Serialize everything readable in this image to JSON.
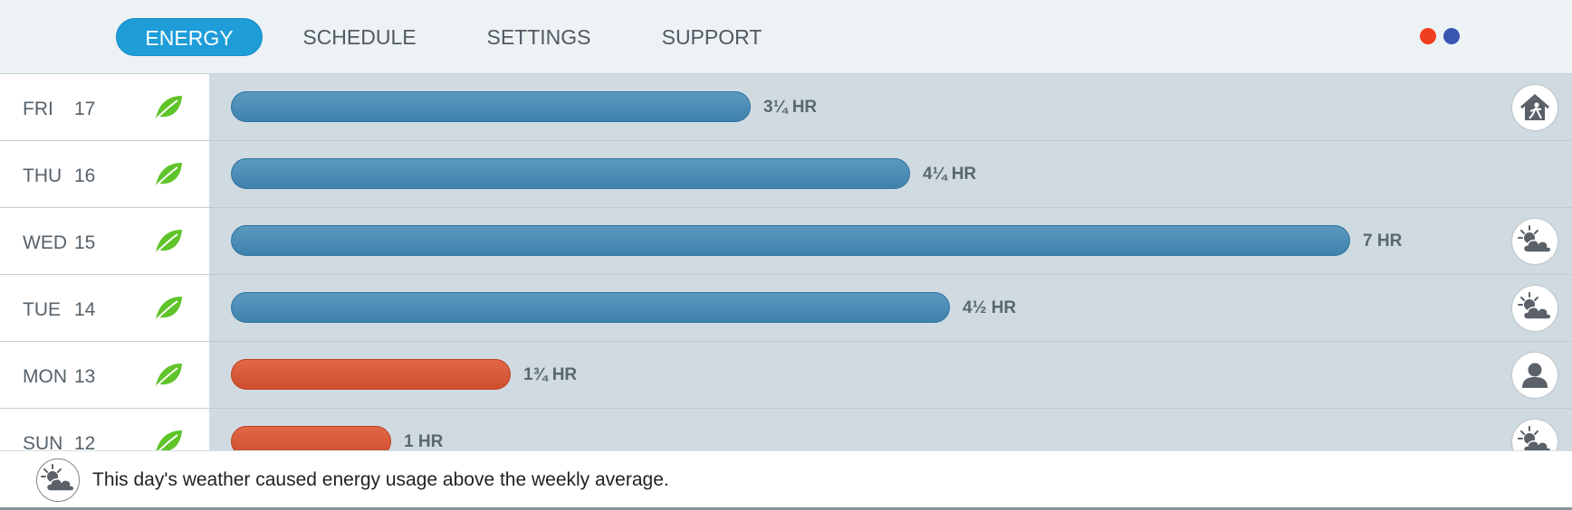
{
  "nav": {
    "tabs": [
      {
        "label": "ENERGY",
        "active": true
      },
      {
        "label": "SCHEDULE",
        "active": false
      },
      {
        "label": "SETTINGS",
        "active": false
      },
      {
        "label": "SUPPORT",
        "active": false
      }
    ],
    "indicator_colors": [
      "#ef3e1e",
      "#3a56b3"
    ]
  },
  "days": [
    {
      "day": "FRI",
      "date": "17",
      "usage_label": "3¼ HR",
      "hours": 3.25,
      "bar_color": "blue",
      "leaf_icon": "leaf-icon",
      "cause_icon": "away-home-icon"
    },
    {
      "day": "THU",
      "date": "16",
      "usage_label": "4¼ HR",
      "hours": 4.25,
      "bar_color": "blue",
      "leaf_icon": "leaf-icon",
      "cause_icon": null
    },
    {
      "day": "WED",
      "date": "15",
      "usage_label": "7 HR",
      "hours": 7,
      "bar_color": "blue",
      "leaf_icon": "leaf-icon",
      "cause_icon": "weather-icon"
    },
    {
      "day": "TUE",
      "date": "14",
      "usage_label": "4½ HR",
      "hours": 4.5,
      "bar_color": "blue",
      "leaf_icon": "leaf-icon",
      "cause_icon": "weather-icon"
    },
    {
      "day": "MON",
      "date": "13",
      "usage_label": "1¾ HR",
      "hours": 1.75,
      "bar_color": "orange",
      "leaf_icon": "leaf-icon",
      "cause_icon": "user-icon"
    },
    {
      "day": "SUN",
      "date": "12",
      "usage_label": "1 HR",
      "hours": 1,
      "bar_color": "orange",
      "leaf_icon": "leaf-icon",
      "cause_icon": "weather-icon"
    }
  ],
  "footer": {
    "icon": "weather-icon",
    "text": "This day's weather caused energy usage above the weekly average."
  },
  "colors": {
    "accent": "#1e9dd9",
    "bar_blue": "#4a8ab5",
    "bar_orange": "#d6583a",
    "leaf_green": "#5fc42a"
  }
}
